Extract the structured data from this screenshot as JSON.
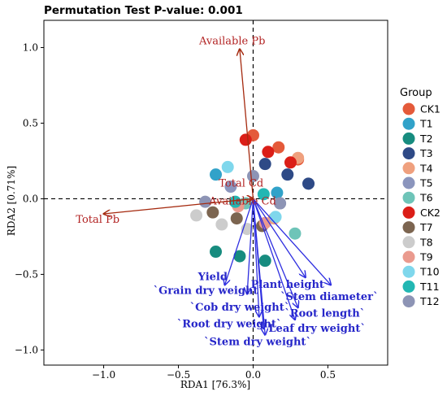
{
  "chart_data": {
    "type": "scatter",
    "title": "Permutation Test P-value: 0.001",
    "xlabel": "RDA1 [76.3%]",
    "ylabel": "RDA2 [0.71%]",
    "xlim": [
      -1.4,
      0.9
    ],
    "ylim": [
      -1.1,
      1.18
    ],
    "xticks": [
      -1.0,
      -0.5,
      0.0,
      0.5
    ],
    "yticks": [
      -1.0,
      -0.5,
      0.0,
      0.5,
      1.0
    ],
    "xtick_labels": [
      "−1.0",
      "−0.5",
      "0.0",
      "0.5"
    ],
    "ytick_labels": [
      "−1.0",
      "−0.5",
      "0.0",
      "0.5",
      "1.0"
    ],
    "grid": false,
    "reference_lines": {
      "x": 0,
      "y": 0,
      "style": "dashed"
    },
    "legend": {
      "title": "Group",
      "placement": "right",
      "entries": [
        {
          "name": "CK1",
          "color": "#E45A3A"
        },
        {
          "name": "T1",
          "color": "#31A2C9"
        },
        {
          "name": "T2",
          "color": "#178C7F"
        },
        {
          "name": "T3",
          "color": "#2E4A86"
        },
        {
          "name": "T4",
          "color": "#EFA07E"
        },
        {
          "name": "T5",
          "color": "#8B95BD"
        },
        {
          "name": "T6",
          "color": "#6EC4B8"
        },
        {
          "name": "CK2",
          "color": "#DB1E17"
        },
        {
          "name": "T7",
          "color": "#7C6550"
        },
        {
          "name": "T8",
          "color": "#CCCCCC"
        },
        {
          "name": "T9",
          "color": "#EA9A8E"
        },
        {
          "name": "T10",
          "color": "#7FD7EC"
        },
        {
          "name": "T11",
          "color": "#22B7B3"
        },
        {
          "name": "T12",
          "color": "#8D94B5"
        }
      ]
    },
    "points": [
      {
        "group": "CK1",
        "x": 0.0,
        "y": 0.42
      },
      {
        "group": "CK1",
        "x": 0.17,
        "y": 0.34
      },
      {
        "group": "CK1",
        "x": 0.3,
        "y": 0.26
      },
      {
        "group": "T1",
        "x": -0.25,
        "y": 0.16
      },
      {
        "group": "T1",
        "x": 0.16,
        "y": 0.04
      },
      {
        "group": "T2",
        "x": -0.25,
        "y": -0.35
      },
      {
        "group": "T2",
        "x": -0.09,
        "y": -0.38
      },
      {
        "group": "T2",
        "x": 0.08,
        "y": -0.41
      },
      {
        "group": "T3",
        "x": 0.08,
        "y": 0.23
      },
      {
        "group": "T3",
        "x": 0.23,
        "y": 0.16
      },
      {
        "group": "T3",
        "x": 0.37,
        "y": 0.1
      },
      {
        "group": "T4",
        "x": 0.14,
        "y": -0.13
      },
      {
        "group": "T4",
        "x": 0.3,
        "y": 0.27
      },
      {
        "group": "T5",
        "x": -0.15,
        "y": 0.08
      },
      {
        "group": "T5",
        "x": 0.18,
        "y": -0.03
      },
      {
        "group": "T6",
        "x": -0.05,
        "y": -0.03
      },
      {
        "group": "T6",
        "x": 0.28,
        "y": -0.23
      },
      {
        "group": "CK2",
        "x": -0.05,
        "y": 0.39
      },
      {
        "group": "CK2",
        "x": 0.1,
        "y": 0.31
      },
      {
        "group": "CK2",
        "x": 0.25,
        "y": 0.24
      },
      {
        "group": "T7",
        "x": -0.27,
        "y": -0.09
      },
      {
        "group": "T7",
        "x": -0.11,
        "y": -0.13
      },
      {
        "group": "T7",
        "x": 0.06,
        "y": -0.18
      },
      {
        "group": "T8",
        "x": -0.38,
        "y": -0.11
      },
      {
        "group": "T8",
        "x": -0.21,
        "y": -0.17
      },
      {
        "group": "T8",
        "x": -0.04,
        "y": -0.2
      },
      {
        "group": "T9",
        "x": -0.1,
        "y": -0.05
      },
      {
        "group": "T9",
        "x": 0.08,
        "y": -0.16
      },
      {
        "group": "T10",
        "x": -0.17,
        "y": 0.21
      },
      {
        "group": "T10",
        "x": 0.15,
        "y": -0.12
      },
      {
        "group": "T11",
        "x": -0.12,
        "y": -0.02
      },
      {
        "group": "T11",
        "x": 0.07,
        "y": 0.03
      },
      {
        "group": "T12",
        "x": -0.32,
        "y": -0.02
      },
      {
        "group": "T12",
        "x": 0.0,
        "y": 0.15
      },
      {
        "group": "T12",
        "x": 0.18,
        "y": -0.03
      }
    ],
    "env_arrows": [
      {
        "label": "Available Pb",
        "x": -0.09,
        "y": 0.99,
        "label_x": -0.14,
        "label_y": 1.04
      },
      {
        "label": "Total Cd",
        "x": 0.0,
        "y": 0.0,
        "label_x": -0.08,
        "label_y": 0.1
      },
      {
        "label": "Available Cd",
        "x": 0.0,
        "y": 0.0,
        "label_x": -0.07,
        "label_y": -0.02
      },
      {
        "label": "Total Pb",
        "x": -1.0,
        "y": -0.1,
        "label_x": -1.04,
        "label_y": -0.14
      }
    ],
    "trait_arrows": [
      {
        "label": "Plant height",
        "x": 0.35,
        "y": -0.52,
        "label_x": 0.23,
        "label_y": -0.57
      },
      {
        "label": "`Stem diameter`",
        "x": 0.52,
        "y": -0.57,
        "label_x": 0.51,
        "label_y": -0.65
      },
      {
        "label": "`Root length`",
        "x": 0.3,
        "y": -0.72,
        "label_x": 0.48,
        "label_y": -0.76
      },
      {
        "label": "`Leaf dry weight`",
        "x": 0.28,
        "y": -0.8,
        "label_x": 0.41,
        "label_y": -0.86
      },
      {
        "label": "Yield",
        "x": -0.19,
        "y": -0.57,
        "label_x": -0.27,
        "label_y": -0.52
      },
      {
        "label": "`Grain dry weight`",
        "x": -0.04,
        "y": -0.63,
        "label_x": -0.3,
        "label_y": -0.61
      },
      {
        "label": "`Cob dry weight`",
        "x": 0.04,
        "y": -0.78,
        "label_x": -0.09,
        "label_y": -0.72
      },
      {
        "label": "`Root dry weight`",
        "x": 0.07,
        "y": -0.86,
        "label_x": -0.16,
        "label_y": -0.83
      },
      {
        "label": "`Stem dry weight`",
        "x": 0.08,
        "y": -0.9,
        "label_x": 0.03,
        "label_y": -0.95
      }
    ],
    "colors": {
      "env_arrow": "#A52A0F",
      "env_label": "#B22222",
      "trait_arrow": "#2F2FE0",
      "trait_label": "#2626C9"
    }
  }
}
